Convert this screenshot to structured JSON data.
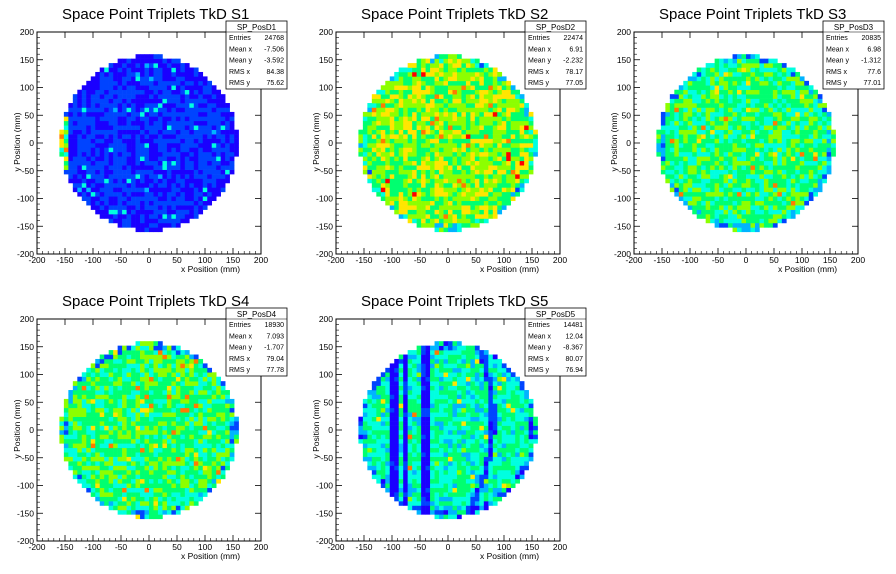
{
  "chart_data": [
    {
      "type": "heatmap",
      "title": "Space Point Triplets TkD S1",
      "xlabel": "x Position (mm)",
      "ylabel": "y Position (mm)",
      "xlim": [
        -200,
        200
      ],
      "ylim": [
        -200,
        200
      ],
      "xticks": [
        "-200",
        "-150",
        "-100",
        "-50",
        "0",
        "50",
        "100",
        "150",
        "200"
      ],
      "yticks": [
        "-200",
        "-150",
        "-100",
        "-50",
        "0",
        "50",
        "100",
        "150",
        "200"
      ],
      "stats": {
        "name": "SP_PosD1",
        "rows": [
          [
            "Entries",
            "24768"
          ],
          [
            "Mean x",
            "-7.506"
          ],
          [
            "Mean y",
            "-3.592"
          ],
          [
            "RMS x",
            "84.38"
          ],
          [
            "RMS y",
            "75.62"
          ]
        ]
      },
      "circle_radius": 158,
      "level_mean": 0.12,
      "level_spread": 0.05,
      "hot_left_edge": true,
      "vertical_stripes": [],
      "arc_stripe": false,
      "palette": [
        "#1a00ff",
        "#0044ff",
        "#00b4ff",
        "#00ffe0",
        "#00ff70",
        "#8cff00",
        "#ffe600",
        "#ff7a00",
        "#ff0000"
      ]
    },
    {
      "type": "heatmap",
      "title": "Space Point Triplets TkD S2",
      "xlabel": "x Position (mm)",
      "ylabel": "y Position (mm)",
      "xlim": [
        -200,
        200
      ],
      "ylim": [
        -200,
        200
      ],
      "xticks": [
        "-200",
        "-150",
        "-100",
        "-50",
        "0",
        "50",
        "100",
        "150",
        "200"
      ],
      "yticks": [
        "-200",
        "-150",
        "-100",
        "-50",
        "0",
        "50",
        "100",
        "150",
        "200"
      ],
      "stats": {
        "name": "SP_PosD2",
        "rows": [
          [
            "Entries",
            "22474"
          ],
          [
            "Mean x",
            "6.91"
          ],
          [
            "Mean y",
            "-2.232"
          ],
          [
            "RMS x",
            "78.17"
          ],
          [
            "RMS y",
            "77.05"
          ]
        ]
      },
      "circle_radius": 158,
      "level_mean": 0.6,
      "level_spread": 0.14,
      "hot_left_edge": false,
      "vertical_stripes": [],
      "arc_stripe": false,
      "palette": [
        "#1a00ff",
        "#0044ff",
        "#00b4ff",
        "#00ffe0",
        "#00ff70",
        "#8cff00",
        "#ffe600",
        "#ff7a00",
        "#ff0000"
      ]
    },
    {
      "type": "heatmap",
      "title": "Space Point Triplets TkD S3",
      "xlabel": "x Position (mm)",
      "ylabel": "y Position (mm)",
      "xlim": [
        -200,
        200
      ],
      "ylim": [
        -200,
        200
      ],
      "xticks": [
        "-200",
        "-150",
        "-100",
        "-50",
        "0",
        "50",
        "100",
        "150",
        "200"
      ],
      "yticks": [
        "-200",
        "-150",
        "-100",
        "-50",
        "0",
        "50",
        "100",
        "150",
        "200"
      ],
      "stats": {
        "name": "SP_PosD3",
        "rows": [
          [
            "Entries",
            "20835"
          ],
          [
            "Mean x",
            "6.98"
          ],
          [
            "Mean y",
            "-1.312"
          ],
          [
            "RMS x",
            "77.6"
          ],
          [
            "RMS y",
            "77.01"
          ]
        ]
      },
      "circle_radius": 158,
      "level_mean": 0.5,
      "level_spread": 0.12,
      "hot_left_edge": false,
      "vertical_stripes": [],
      "arc_stripe": false,
      "palette": [
        "#1a00ff",
        "#0044ff",
        "#00b4ff",
        "#00ffe0",
        "#00ff70",
        "#8cff00",
        "#ffe600",
        "#ff7a00",
        "#ff0000"
      ]
    },
    {
      "type": "heatmap",
      "title": "Space Point Triplets TkD S4",
      "xlabel": "x Position (mm)",
      "ylabel": "y Position (mm)",
      "xlim": [
        -200,
        200
      ],
      "ylim": [
        -200,
        200
      ],
      "xticks": [
        "-200",
        "-150",
        "-100",
        "-50",
        "0",
        "50",
        "100",
        "150",
        "200"
      ],
      "yticks": [
        "-200",
        "-150",
        "-100",
        "-50",
        "0",
        "50",
        "100",
        "150",
        "200"
      ],
      "stats": {
        "name": "SP_PosD4",
        "rows": [
          [
            "Entries",
            "18930"
          ],
          [
            "Mean x",
            "7.093"
          ],
          [
            "Mean y",
            "-1.707"
          ],
          [
            "RMS x",
            "79.04"
          ],
          [
            "RMS y",
            "77.78"
          ]
        ]
      },
      "circle_radius": 158,
      "level_mean": 0.5,
      "level_spread": 0.12,
      "hot_left_edge": false,
      "vertical_stripes": [],
      "arc_stripe": false,
      "palette": [
        "#1a00ff",
        "#0044ff",
        "#00b4ff",
        "#00ffe0",
        "#00ff70",
        "#8cff00",
        "#ffe600",
        "#ff7a00",
        "#ff0000"
      ]
    },
    {
      "type": "heatmap",
      "title": "Space Point Triplets TkD S5",
      "xlabel": "x Position (mm)",
      "ylabel": "y Position (mm)",
      "xlim": [
        -200,
        200
      ],
      "ylim": [
        -200,
        200
      ],
      "xticks": [
        "-200",
        "-150",
        "-100",
        "-50",
        "0",
        "50",
        "100",
        "150",
        "200"
      ],
      "yticks": [
        "-200",
        "-150",
        "-100",
        "-50",
        "0",
        "50",
        "100",
        "150",
        "200"
      ],
      "stats": {
        "name": "SP_PosD5",
        "rows": [
          [
            "Entries",
            "14481"
          ],
          [
            "Mean x",
            "12.04"
          ],
          [
            "Mean y",
            "-8.367"
          ],
          [
            "RMS x",
            "80.07"
          ],
          [
            "RMS y",
            "76.94"
          ]
        ]
      },
      "circle_radius": 158,
      "level_mean": 0.42,
      "level_spread": 0.13,
      "hot_left_edge": false,
      "vertical_stripes": [
        -95,
        -75,
        -40
      ],
      "arc_stripe": true,
      "palette": [
        "#1a00ff",
        "#0044ff",
        "#00b4ff",
        "#00ffe0",
        "#00ff70",
        "#8cff00",
        "#ffe600",
        "#ff7a00",
        "#ff0000"
      ]
    }
  ]
}
